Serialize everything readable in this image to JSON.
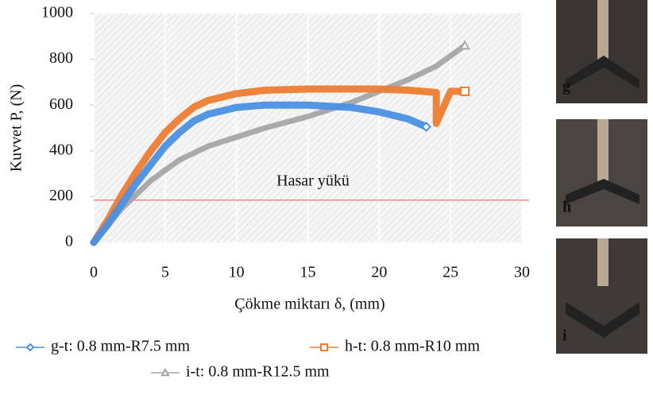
{
  "chart_data": {
    "type": "line",
    "xlabel": "Çökme miktarı δ, (mm)",
    "ylabel": "Kuvvet P, (N)",
    "xlim": [
      0,
      30
    ],
    "xticks": [
      0,
      5,
      10,
      15,
      20,
      25,
      30
    ],
    "ylim": [
      0,
      1000
    ],
    "yticks": [
      0,
      200,
      400,
      600,
      800,
      1000
    ],
    "grid": true,
    "hline": {
      "value": 185,
      "color": "#f08a8a",
      "label": "Hasar yükü"
    },
    "series": [
      {
        "name": "g-t: 0.8 mm-R7.5 mm",
        "color": "#4a90e2",
        "marker": "diamond",
        "x": [
          0,
          1,
          2,
          3,
          4,
          5,
          6,
          7,
          8,
          10,
          12,
          15,
          18,
          20,
          22,
          23.3
        ],
        "values": [
          0,
          80,
          170,
          260,
          340,
          420,
          480,
          530,
          560,
          590,
          600,
          600,
          590,
          570,
          540,
          505
        ]
      },
      {
        "name": "h-t: 0.8 mm-R10 mm",
        "color": "#ed7d31",
        "marker": "square",
        "x": [
          0,
          1,
          2,
          3,
          4,
          5,
          6,
          7,
          8,
          10,
          12,
          15,
          18,
          20,
          22,
          23,
          24,
          24,
          24,
          24,
          25,
          26
        ],
        "values": [
          0,
          100,
          210,
          310,
          400,
          480,
          540,
          590,
          620,
          650,
          665,
          670,
          670,
          670,
          665,
          660,
          655,
          620,
          580,
          520,
          660,
          660
        ]
      },
      {
        "name": "i-t: 0.8 mm-R12.5 mm",
        "color": "#a5a5a5",
        "marker": "triangle",
        "x": [
          0,
          2,
          4,
          6,
          8,
          10,
          12,
          15,
          18,
          20,
          22,
          24,
          26
        ],
        "values": [
          0,
          150,
          270,
          360,
          420,
          460,
          500,
          550,
          610,
          660,
          710,
          770,
          860
        ]
      }
    ]
  },
  "photos": [
    {
      "label": "g"
    },
    {
      "label": "h"
    },
    {
      "label": "i"
    }
  ]
}
